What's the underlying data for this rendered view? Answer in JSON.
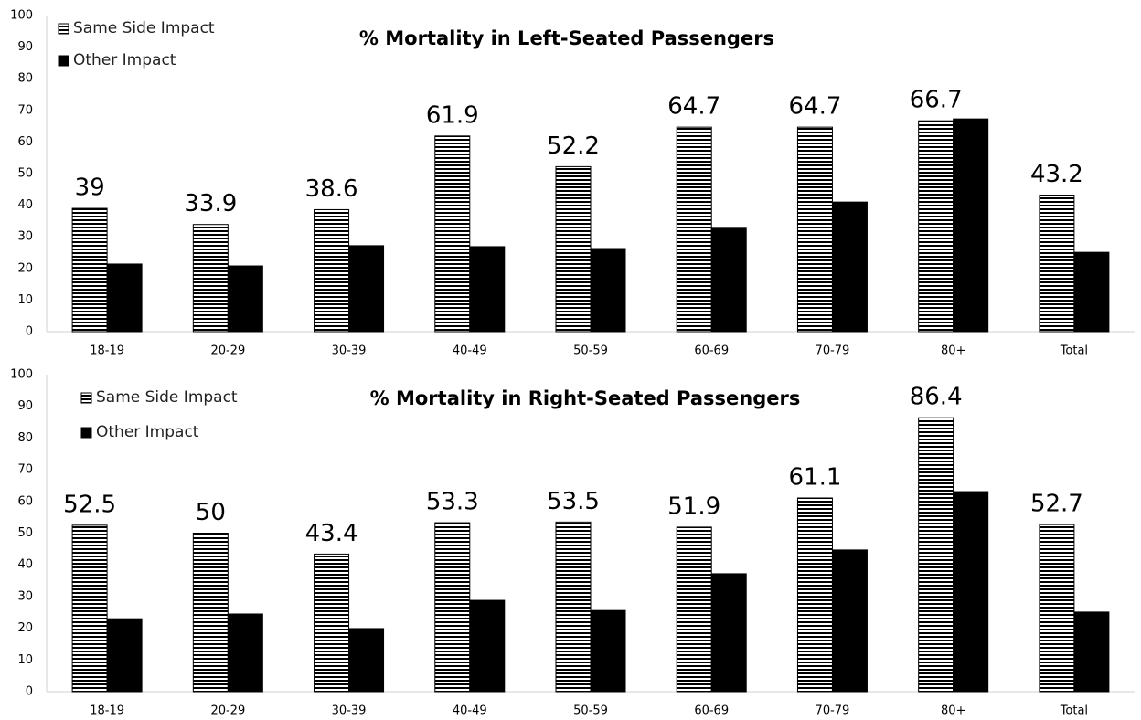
{
  "chart_data": [
    {
      "type": "bar",
      "title": "% Mortality in Left-Seated Passengers",
      "categories": [
        "18-19",
        "20-29",
        "30-39",
        "40-49",
        "50-59",
        "60-69",
        "70-79",
        "80+",
        "Total"
      ],
      "series": [
        {
          "name": "Same Side Impact",
          "color": "#000000",
          "pattern": "horizontal-stripes",
          "data_labels": true,
          "values": [
            39,
            33.9,
            38.6,
            61.9,
            52.2,
            64.7,
            64.7,
            66.7,
            43.2
          ]
        },
        {
          "name": "Other Impact",
          "color": "#000000",
          "values": [
            21.4,
            20.8,
            27.2,
            26.9,
            26.3,
            33,
            41,
            67.3,
            25.1
          ]
        }
      ],
      "ylim": [
        0,
        100
      ],
      "yticks": [
        0,
        10,
        20,
        30,
        40,
        50,
        60,
        70,
        80,
        90,
        100
      ],
      "grid": false,
      "legend": "top-left"
    },
    {
      "type": "bar",
      "title": "% Mortality in Right-Seated Passengers",
      "categories": [
        "18-19",
        "20-29",
        "30-39",
        "40-49",
        "50-59",
        "60-69",
        "70-79",
        "80+",
        "Total"
      ],
      "series": [
        {
          "name": "Same Side Impact",
          "color": "#000000",
          "pattern": "horizontal-stripes",
          "data_labels": true,
          "values": [
            52.5,
            50,
            43.4,
            53.3,
            53.5,
            51.9,
            61.1,
            86.4,
            52.7
          ]
        },
        {
          "name": "Other Impact",
          "color": "#000000",
          "values": [
            23,
            24.5,
            19.9,
            28.8,
            25.6,
            37.2,
            44.7,
            63.1,
            25.1
          ]
        }
      ],
      "ylim": [
        0,
        100
      ],
      "yticks": [
        0,
        10,
        20,
        30,
        40,
        50,
        60,
        70,
        80,
        90,
        100
      ],
      "grid": false,
      "legend": "top-left"
    }
  ]
}
